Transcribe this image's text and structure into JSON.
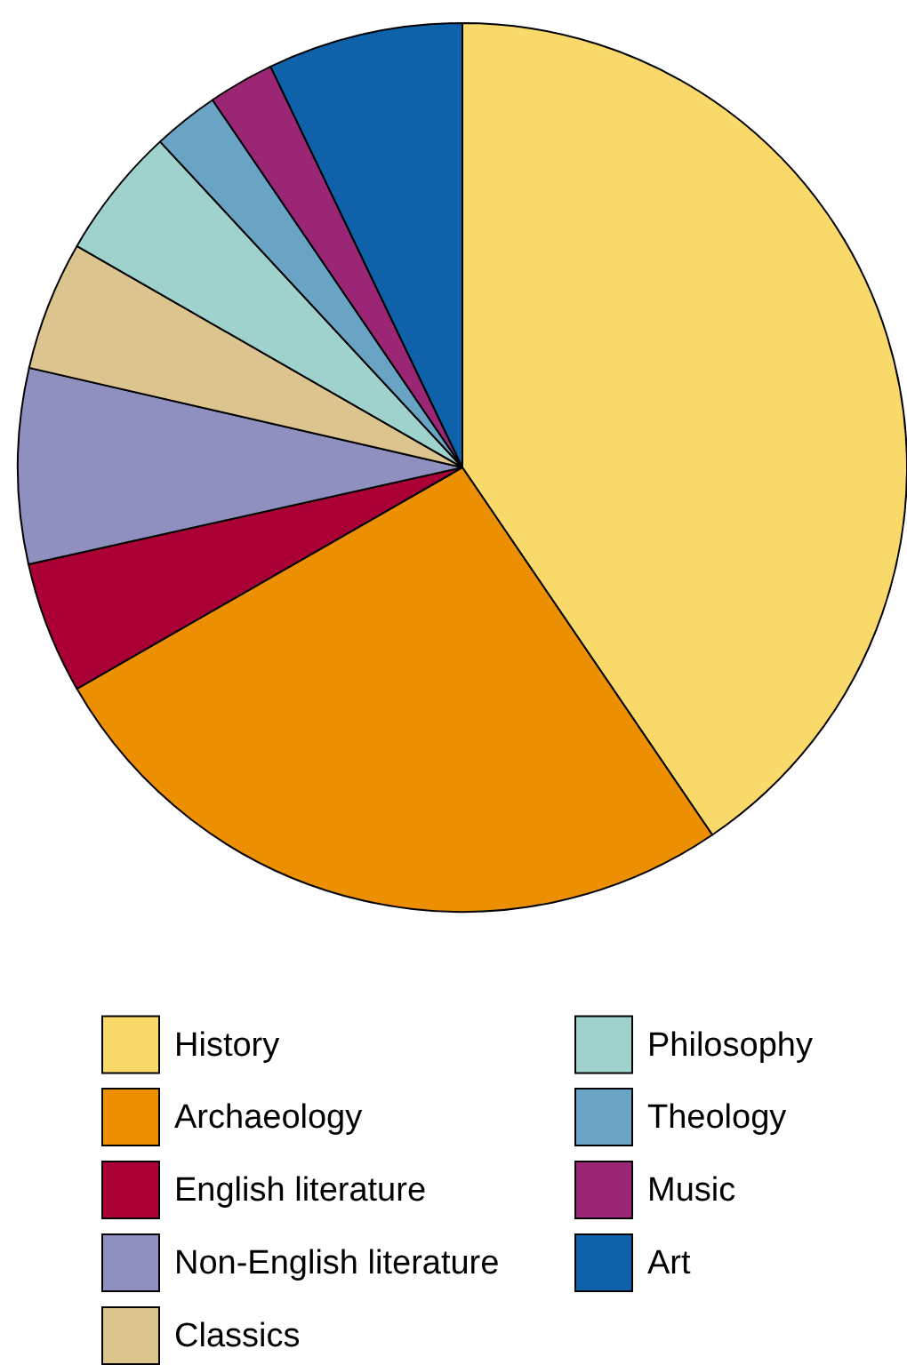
{
  "chart_data": {
    "type": "pie",
    "categories": [
      "History",
      "Archaeology",
      "English literature",
      "Non-English literature",
      "Classics",
      "Philosophy",
      "Theology",
      "Music",
      "Art"
    ],
    "values": [
      40.5,
      26.2,
      4.8,
      7.1,
      4.7,
      4.8,
      2.4,
      2.4,
      7.1
    ],
    "colors": [
      "#f9d96a",
      "#ec8f00",
      "#ab0036",
      "#8f8fc0",
      "#dcc48f",
      "#9fd2cc",
      "#6aa4c4",
      "#9b2676",
      "#0f62a9"
    ],
    "legend": "bottom"
  }
}
